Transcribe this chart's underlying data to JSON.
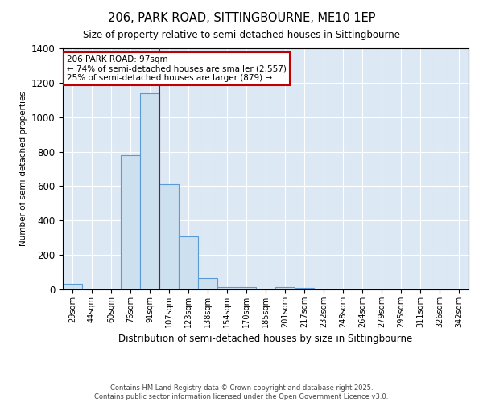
{
  "title": "206, PARK ROAD, SITTINGBOURNE, ME10 1EP",
  "subtitle": "Size of property relative to semi-detached houses in Sittingbourne",
  "xlabel": "Distribution of semi-detached houses by size in Sittingbourne",
  "ylabel": "Number of semi-detached properties",
  "bins": [
    "29sqm",
    "44sqm",
    "60sqm",
    "76sqm",
    "91sqm",
    "107sqm",
    "123sqm",
    "138sqm",
    "154sqm",
    "170sqm",
    "185sqm",
    "201sqm",
    "217sqm",
    "232sqm",
    "248sqm",
    "264sqm",
    "279sqm",
    "295sqm",
    "311sqm",
    "326sqm",
    "342sqm"
  ],
  "values": [
    35,
    0,
    0,
    780,
    1140,
    610,
    310,
    65,
    15,
    15,
    0,
    15,
    10,
    0,
    0,
    0,
    0,
    0,
    0,
    0,
    0
  ],
  "bar_color": "#cce0f0",
  "bar_edge_color": "#5b9bd5",
  "red_line_x": 4.5,
  "annotation_line1": "206 PARK ROAD: 97sqm",
  "annotation_line2": "← 74% of semi-detached houses are smaller (2,557)",
  "annotation_line3": "25% of semi-detached houses are larger (879) →",
  "red_line_color": "#c00000",
  "annotation_box_color": "#ffffff",
  "annotation_box_edge": "#c00000",
  "footer": "Contains HM Land Registry data © Crown copyright and database right 2025.\nContains public sector information licensed under the Open Government Licence v3.0.",
  "ylim": [
    0,
    1400
  ],
  "background_color": "#dde8f5"
}
